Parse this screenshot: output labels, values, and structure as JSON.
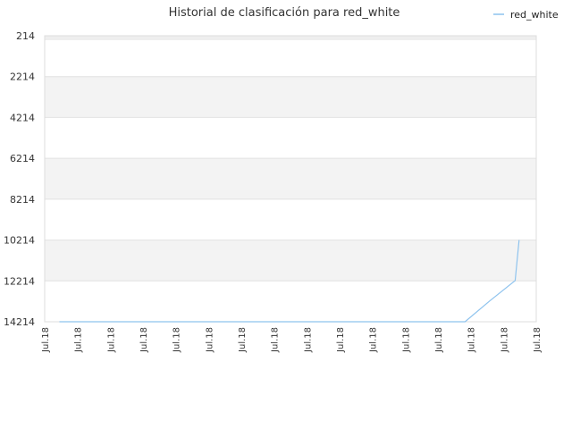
{
  "chart_data": {
    "type": "line",
    "title": "Historial de clasificación para red_white",
    "xlabel": "",
    "ylabel": "",
    "y_reversed": true,
    "ylim": [
      214,
      14214
    ],
    "y_ticks": [
      214,
      2214,
      4214,
      6214,
      8214,
      10214,
      12214,
      14214
    ],
    "x_tick_labels": [
      "Jul.18",
      "Jul.18",
      "Jul.18",
      "Jul.18",
      "Jul.18",
      "Jul.18",
      "Jul.18",
      "Jul.18",
      "Jul.18",
      "Jul.18",
      "Jul.18",
      "Jul.18",
      "Jul.18",
      "Jul.18",
      "Jul.18",
      "Jul.18"
    ],
    "grid": true,
    "band_color": "#f3f3f3",
    "legend_position": "top-right",
    "series": [
      {
        "name": "red_white",
        "color": "#8ec3ee",
        "x": [
          0.03,
          0.25,
          0.5,
          0.75,
          0.855,
          0.905,
          0.957,
          0.965
        ],
        "y": [
          14214,
          14214,
          14214,
          14214,
          14214,
          13200,
          12200,
          10214
        ]
      }
    ]
  }
}
